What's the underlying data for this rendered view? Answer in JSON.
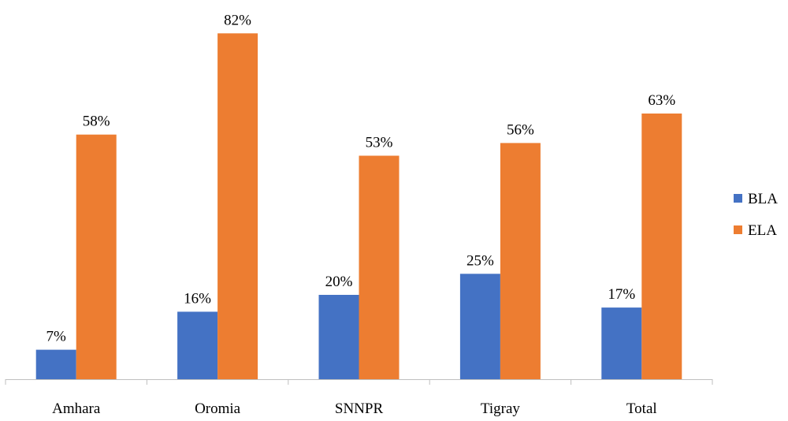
{
  "chart_data": {
    "type": "bar",
    "title": "",
    "xlabel": "",
    "ylabel": "",
    "categories": [
      "Amhara",
      "Oromia",
      "SNNPR",
      "Tigray",
      "Total"
    ],
    "series": [
      {
        "name": "BLA",
        "color": "#4472C4",
        "values": [
          7,
          16,
          20,
          25,
          17
        ],
        "labels": [
          "7%",
          "16%",
          "20%",
          "25%",
          "17%"
        ]
      },
      {
        "name": "ELA",
        "color": "#ED7D31",
        "values": [
          58,
          82,
          53,
          56,
          63
        ],
        "labels": [
          "58%",
          "82%",
          "53%",
          "56%",
          "63%"
        ]
      }
    ],
    "ylim": [
      0,
      100
    ],
    "value_axis_visible": false,
    "grid": false,
    "legend_position": "right"
  }
}
